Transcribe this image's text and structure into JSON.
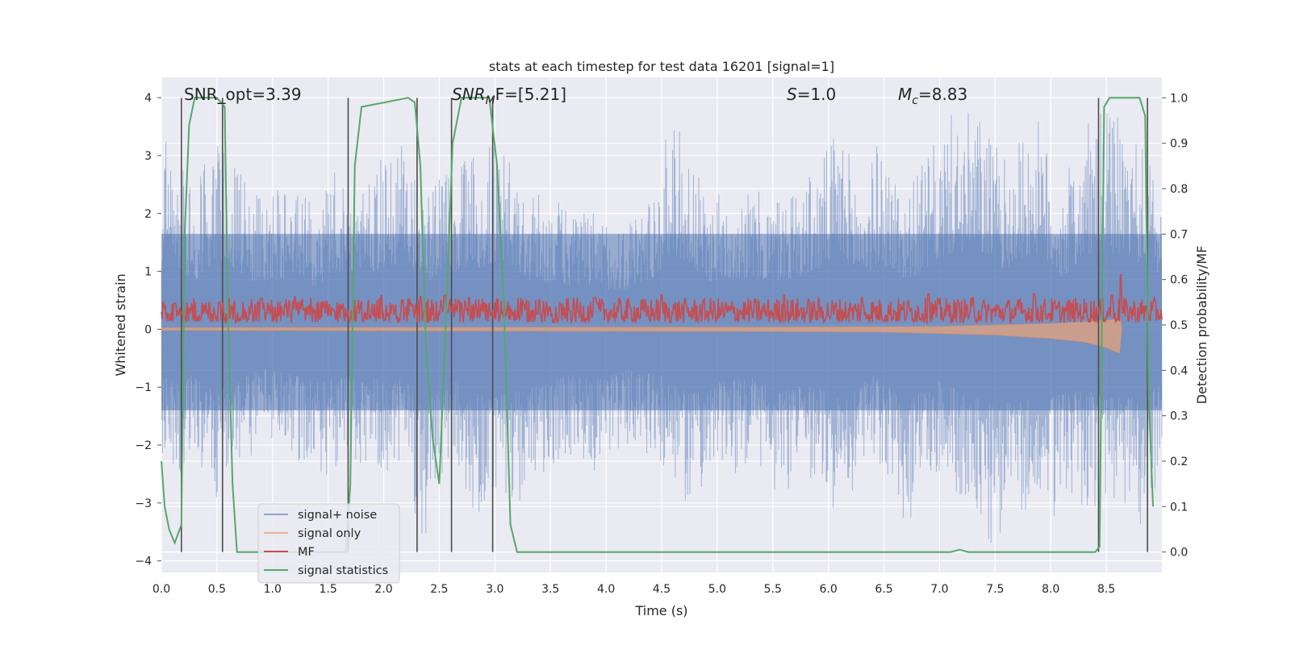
{
  "chart_data": {
    "type": "line",
    "title": "stats at each timestep for test data 16201 [signal=1]",
    "xlabel": "Time (s)",
    "ylabel": "Whitened strain",
    "y2label": "Detection probability/MF",
    "xlim": [
      0.0,
      9.0
    ],
    "ylim": [
      -4.2,
      4.35
    ],
    "y2lim": [
      -0.045,
      1.045
    ],
    "grid": true,
    "legend_position": "lower-left",
    "x_ticks": [
      "0.0",
      "0.5",
      "1.0",
      "1.5",
      "2.0",
      "2.5",
      "3.0",
      "3.5",
      "4.0",
      "4.5",
      "5.0",
      "5.5",
      "6.0",
      "6.5",
      "7.0",
      "7.5",
      "8.0",
      "8.5"
    ],
    "y_ticks": [
      "4",
      "3",
      "2",
      "1",
      "0",
      "−1",
      "−2",
      "−3",
      "−4"
    ],
    "y2_ticks": [
      "1.0",
      "0.9",
      "0.8",
      "0.7",
      "0.6",
      "0.5",
      "0.4",
      "0.3",
      "0.2",
      "0.1",
      "0.0"
    ],
    "annotations": {
      "snr_opt": "SNR_opt=3.39",
      "snr_mf_sym": "SNR",
      "snr_mf_sub": "M",
      "snr_mf_rest": "F=[5.21]",
      "s_sym": "S",
      "s_rest": "=1.0",
      "mc_sym": "M",
      "mc_sub": "c",
      "mc_rest": "=8.83"
    },
    "vertical_markers_x": [
      0.18,
      0.55,
      1.68,
      2.3,
      2.61,
      2.98,
      8.43,
      8.87
    ],
    "series": [
      {
        "name": "signal+ noise",
        "color": "#4c72b0",
        "axis": "left",
        "envelope_upper": [
          [
            0.0,
            2.8
          ],
          [
            0.05,
            3.8
          ],
          [
            0.1,
            3.3
          ],
          [
            0.3,
            2.3
          ],
          [
            0.4,
            3.0
          ],
          [
            0.55,
            3.4
          ],
          [
            0.8,
            2.4
          ],
          [
            1.0,
            2.4
          ],
          [
            1.2,
            2.6
          ],
          [
            1.4,
            2.0
          ],
          [
            1.55,
            2.9
          ],
          [
            1.9,
            2.8
          ],
          [
            2.15,
            3.3
          ],
          [
            2.4,
            2.4
          ],
          [
            2.6,
            2.9
          ],
          [
            2.85,
            3.0
          ],
          [
            3.0,
            3.3
          ],
          [
            3.3,
            2.4
          ],
          [
            3.6,
            2.2
          ],
          [
            3.9,
            2.0
          ],
          [
            4.2,
            1.9
          ],
          [
            4.45,
            2.6
          ],
          [
            4.6,
            3.8
          ],
          [
            4.9,
            2.3
          ],
          [
            5.2,
            2.5
          ],
          [
            5.5,
            2.3
          ],
          [
            5.9,
            2.8
          ],
          [
            6.1,
            3.6
          ],
          [
            6.3,
            2.4
          ],
          [
            6.45,
            3.3
          ],
          [
            6.7,
            2.4
          ],
          [
            6.95,
            3.2
          ],
          [
            7.1,
            3.7
          ],
          [
            7.35,
            3.8
          ],
          [
            7.6,
            2.9
          ],
          [
            7.85,
            3.8
          ],
          [
            8.1,
            2.5
          ],
          [
            8.3,
            3.5
          ],
          [
            8.5,
            3.8
          ],
          [
            8.7,
            3.6
          ],
          [
            8.9,
            2.9
          ],
          [
            9.0,
            2.6
          ]
        ],
        "envelope_lower": [
          [
            0.0,
            -2.2
          ],
          [
            0.1,
            -2.6
          ],
          [
            0.3,
            -2.2
          ],
          [
            0.5,
            -3.0
          ],
          [
            0.7,
            -2.5
          ],
          [
            0.9,
            -1.9
          ],
          [
            1.1,
            -2.1
          ],
          [
            1.4,
            -2.6
          ],
          [
            1.7,
            -2.3
          ],
          [
            1.9,
            -2.4
          ],
          [
            2.2,
            -2.5
          ],
          [
            2.35,
            -3.8
          ],
          [
            2.6,
            -2.4
          ],
          [
            2.8,
            -3.1
          ],
          [
            3.0,
            -3.3
          ],
          [
            3.3,
            -2.9
          ],
          [
            3.6,
            -2.2
          ],
          [
            3.9,
            -2.5
          ],
          [
            4.2,
            -2.0
          ],
          [
            4.5,
            -2.3
          ],
          [
            4.75,
            -3.2
          ],
          [
            5.0,
            -2.6
          ],
          [
            5.3,
            -2.4
          ],
          [
            5.6,
            -3.1
          ],
          [
            5.8,
            -2.6
          ],
          [
            6.1,
            -3.2
          ],
          [
            6.4,
            -2.2
          ],
          [
            6.7,
            -3.4
          ],
          [
            7.0,
            -2.5
          ],
          [
            7.3,
            -3.2
          ],
          [
            7.5,
            -3.8
          ],
          [
            7.7,
            -3.5
          ],
          [
            8.0,
            -3.3
          ],
          [
            8.2,
            -3.0
          ],
          [
            8.5,
            -3.2
          ],
          [
            8.8,
            -3.4
          ],
          [
            9.0,
            -2.6
          ]
        ]
      },
      {
        "name": "signal only",
        "color": "#dd8452",
        "axis": "left",
        "envelope_upper": [
          [
            0.0,
            0.03
          ],
          [
            5.5,
            0.04
          ],
          [
            7.0,
            0.05
          ],
          [
            8.0,
            0.1
          ],
          [
            8.3,
            0.13
          ],
          [
            8.5,
            0.16
          ],
          [
            8.63,
            0.18
          ],
          [
            8.64,
            0.0
          ]
        ],
        "envelope_lower": [
          [
            0.0,
            -0.02
          ],
          [
            5.5,
            -0.04
          ],
          [
            6.5,
            -0.05
          ],
          [
            7.5,
            -0.1
          ],
          [
            8.0,
            -0.16
          ],
          [
            8.3,
            -0.22
          ],
          [
            8.5,
            -0.32
          ],
          [
            8.62,
            -0.42
          ],
          [
            8.64,
            0.0
          ]
        ]
      },
      {
        "name": "MF",
        "color": "#c44e52",
        "axis": "right",
        "band_y2": [
          0.505,
          0.56
        ],
        "peaks_y2": [
          [
            0.13,
            0.547
          ],
          [
            0.52,
            0.55
          ],
          [
            0.9,
            0.558
          ],
          [
            1.2,
            0.562
          ],
          [
            1.8,
            0.55
          ],
          [
            1.98,
            0.565
          ],
          [
            2.33,
            0.563
          ],
          [
            2.55,
            0.565
          ],
          [
            2.77,
            0.56
          ],
          [
            3.4,
            0.555
          ],
          [
            3.9,
            0.56
          ],
          [
            4.5,
            0.566
          ],
          [
            5.6,
            0.565
          ],
          [
            6.3,
            0.56
          ],
          [
            6.9,
            0.568
          ],
          [
            7.3,
            0.56
          ],
          [
            7.85,
            0.568
          ],
          [
            8.55,
            0.565
          ],
          [
            8.63,
            0.61
          ]
        ]
      },
      {
        "name": "signal statistics",
        "color": "#55a868",
        "axis": "right",
        "points": [
          [
            0.0,
            0.2
          ],
          [
            0.03,
            0.1
          ],
          [
            0.07,
            0.05
          ],
          [
            0.12,
            0.02
          ],
          [
            0.18,
            0.06
          ],
          [
            0.21,
            0.7
          ],
          [
            0.25,
            0.94
          ],
          [
            0.3,
            1.0
          ],
          [
            0.5,
            1.0
          ],
          [
            0.57,
            0.98
          ],
          [
            0.6,
            0.5
          ],
          [
            0.64,
            0.15
          ],
          [
            0.68,
            0.0
          ],
          [
            1.66,
            0.0
          ],
          [
            1.7,
            0.15
          ],
          [
            1.74,
            0.85
          ],
          [
            1.8,
            0.98
          ],
          [
            2.22,
            1.0
          ],
          [
            2.28,
            0.99
          ],
          [
            2.33,
            0.85
          ],
          [
            2.38,
            0.45
          ],
          [
            2.44,
            0.25
          ],
          [
            2.5,
            0.15
          ],
          [
            2.55,
            0.45
          ],
          [
            2.62,
            0.9
          ],
          [
            2.7,
            1.0
          ],
          [
            2.95,
            1.0
          ],
          [
            3.02,
            0.85
          ],
          [
            3.08,
            0.55
          ],
          [
            3.14,
            0.06
          ],
          [
            3.2,
            0.0
          ],
          [
            7.1,
            0.0
          ],
          [
            7.18,
            0.005
          ],
          [
            7.26,
            0.0
          ],
          [
            8.4,
            0.0
          ],
          [
            8.44,
            0.012
          ],
          [
            8.48,
            0.98
          ],
          [
            8.53,
            1.0
          ],
          [
            8.8,
            1.0
          ],
          [
            8.85,
            0.96
          ],
          [
            8.88,
            0.35
          ],
          [
            8.92,
            0.1
          ]
        ]
      }
    ]
  }
}
